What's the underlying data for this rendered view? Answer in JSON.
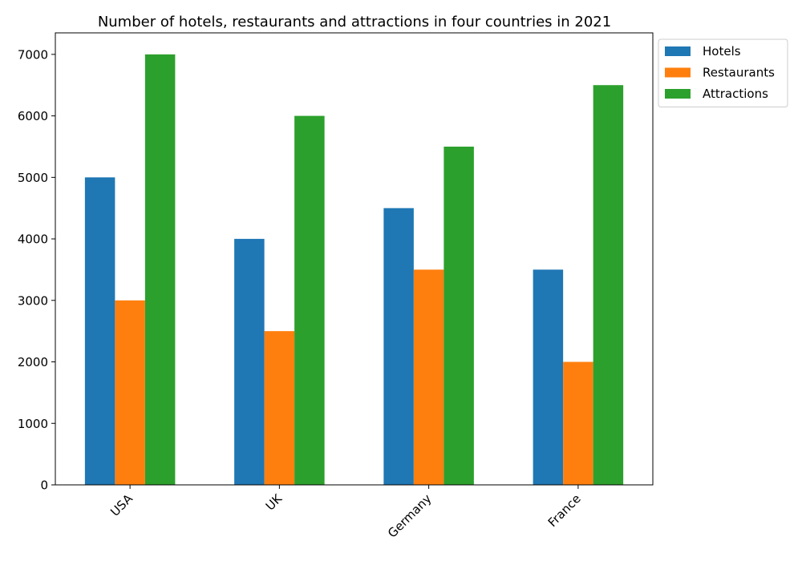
{
  "chart_data": {
    "type": "bar",
    "title": "Number of hotels, restaurants and attractions in four countries in 2021",
    "xlabel": "",
    "ylabel": "",
    "categories": [
      "USA",
      "UK",
      "Germany",
      "France"
    ],
    "series": [
      {
        "name": "Hotels",
        "values": [
          5000,
          4000,
          4500,
          3500
        ],
        "color": "#1f77b4"
      },
      {
        "name": "Restaurants",
        "values": [
          3000,
          2500,
          3500,
          2000
        ],
        "color": "#ff7f0e"
      },
      {
        "name": "Attractions",
        "values": [
          7000,
          6000,
          5500,
          6500
        ],
        "color": "#2ca02c"
      }
    ],
    "ylim": [
      0,
      7350
    ],
    "yticks": [
      0,
      1000,
      2000,
      3000,
      4000,
      5000,
      6000,
      7000
    ],
    "grid": false,
    "legend_position": "top-right, outside plot"
  }
}
